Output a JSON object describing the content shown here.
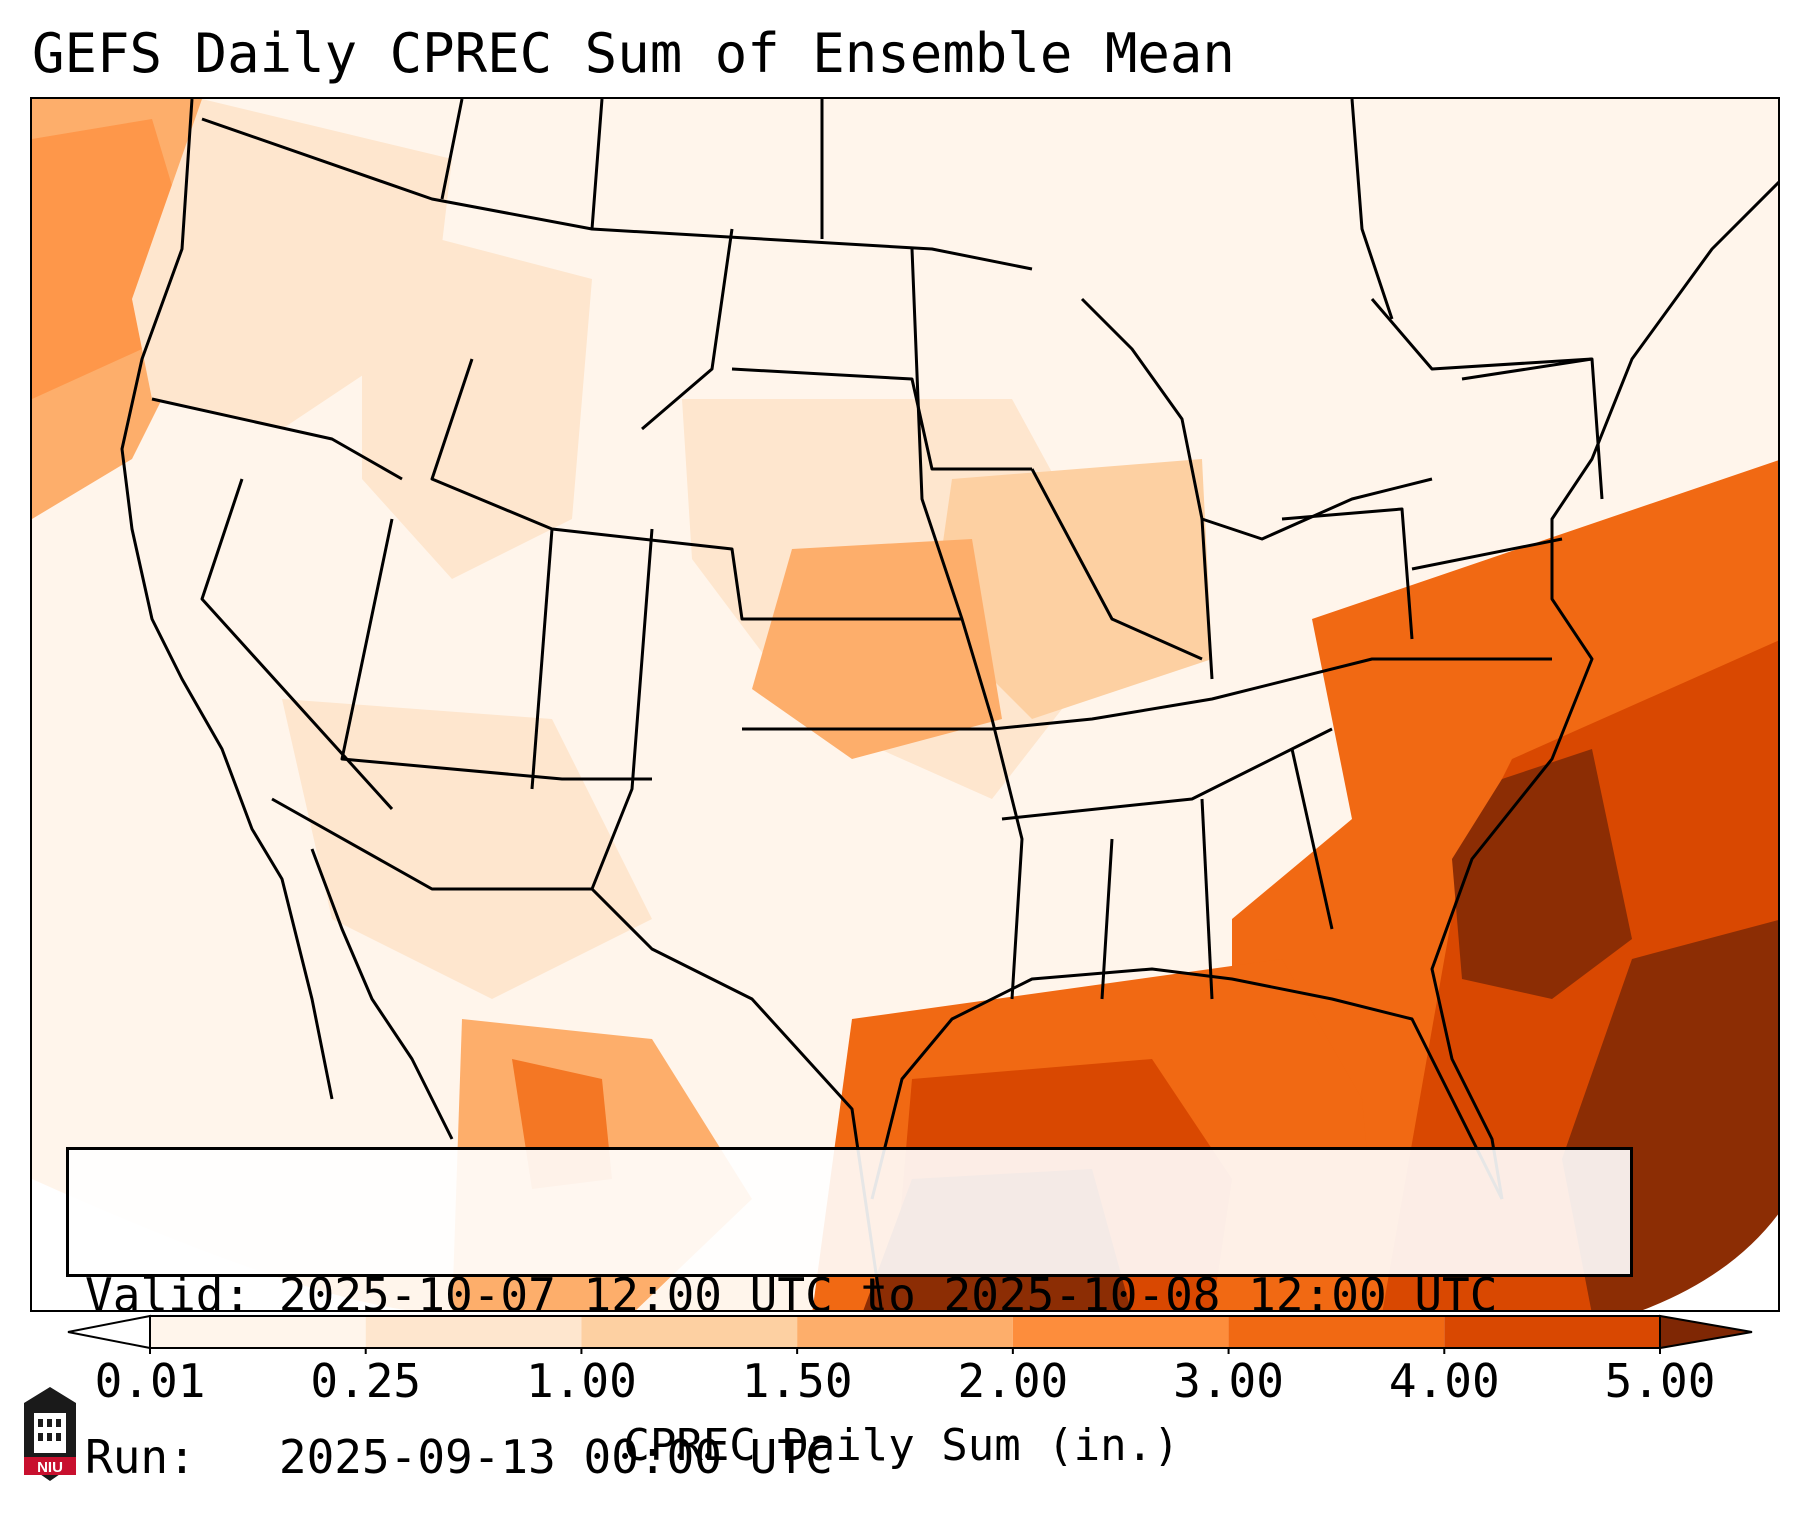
{
  "title": "GEFS Daily CPREC Sum of Ensemble Mean",
  "info": {
    "valid_label": "Valid:",
    "valid_value": "2025-10-07 12:00 UTC to 2025-10-08 12:00 UTC",
    "run_label": "Run:",
    "run_value": "2025-09-13 00:00 UTC"
  },
  "colorbar": {
    "label": "CPREC Daily Sum (in.)",
    "ticks": [
      "0.01",
      "0.25",
      "1.00",
      "1.50",
      "2.00",
      "3.00",
      "4.00",
      "5.00"
    ],
    "colors": [
      "#fff5eb",
      "#fee6ce",
      "#fdd0a2",
      "#fdae6b",
      "#fd8d3c",
      "#f16913",
      "#d94801",
      "#8c2d04"
    ],
    "under_color": "#ffffff",
    "over_color": "#7f2704"
  },
  "logo": {
    "text": "NIU",
    "color": "#c8102e"
  },
  "map": {
    "coastline_color": "#000000"
  }
}
